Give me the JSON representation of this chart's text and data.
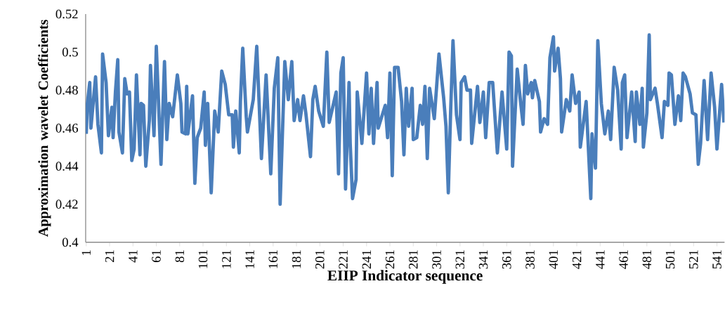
{
  "chart_data": {
    "type": "line",
    "xlabel": "EIIP Indicator sequence",
    "ylabel": "Approximation wavelet Coefficients",
    "xlim": [
      0.5,
      547.5
    ],
    "xticks": [
      1,
      21,
      41,
      61,
      81,
      101,
      121,
      141,
      161,
      181,
      201,
      221,
      241,
      261,
      281,
      301,
      321,
      341,
      361,
      381,
      401,
      421,
      441,
      461,
      481,
      501,
      521,
      541
    ],
    "ylim": [
      0.4,
      0.52
    ],
    "yticks": [
      0.4,
      0.42,
      0.44,
      0.46,
      0.48,
      0.5,
      0.52
    ],
    "x": [
      1,
      2,
      4,
      5,
      9,
      11,
      14,
      15,
      18,
      20,
      23,
      24,
      26,
      28,
      29,
      32,
      34,
      36,
      38,
      40,
      42,
      44,
      47,
      48,
      50,
      52,
      55,
      56,
      59,
      61,
      65,
      68,
      70,
      72,
      75,
      79,
      82,
      83,
      86,
      87,
      88,
      92,
      94,
      96,
      99,
      102,
      103,
      105,
      108,
      111,
      114,
      117,
      120,
      123,
      126,
      127,
      129,
      132,
      133,
      135,
      138,
      139,
      144,
      147,
      151,
      155,
      159,
      162,
      165,
      167,
      171,
      174,
      177,
      179,
      182,
      184,
      187,
      189,
      193,
      195,
      197,
      200,
      204,
      207,
      209,
      215,
      217,
      219,
      221,
      223,
      226,
      227,
      229,
      232,
      233,
      237,
      241,
      243,
      245,
      247,
      250,
      251,
      257,
      259,
      261,
      263,
      265,
      268,
      271,
      273,
      275,
      277,
      280,
      281,
      284,
      287,
      289,
      291,
      293,
      295,
      299,
      303,
      307,
      309,
      311,
      313,
      315,
      318,
      321,
      322,
      325,
      327,
      330,
      331,
      336,
      338,
      341,
      343,
      346,
      349,
      353,
      357,
      361,
      363,
      365,
      366,
      370,
      373,
      375,
      377,
      379,
      382,
      383,
      385,
      389,
      390,
      393,
      396,
      398,
      401,
      402,
      405,
      407,
      408,
      412,
      415,
      417,
      420,
      423,
      424,
      429,
      433,
      434,
      437,
      439,
      442,
      445,
      448,
      450,
      453,
      456,
      459,
      460,
      462,
      464,
      468,
      471,
      472,
      475,
      477,
      478,
      481,
      483,
      484,
      488,
      490,
      494,
      496,
      499,
      500,
      502,
      505,
      508,
      510,
      512,
      514,
      518,
      520,
      523,
      525,
      527,
      530,
      533,
      536,
      539,
      541,
      545,
      547
    ],
    "series": [
      {
        "color": "#4a7ebb",
        "values": [
          0.457,
          0.473,
          0.484,
          0.46,
          0.487,
          0.462,
          0.447,
          0.499,
          0.484,
          0.456,
          0.471,
          0.455,
          0.479,
          0.496,
          0.458,
          0.447,
          0.486,
          0.478,
          0.479,
          0.443,
          0.449,
          0.488,
          0.446,
          0.473,
          0.472,
          0.44,
          0.464,
          0.493,
          0.456,
          0.503,
          0.441,
          0.495,
          0.454,
          0.473,
          0.466,
          0.488,
          0.473,
          0.458,
          0.457,
          0.482,
          0.457,
          0.477,
          0.431,
          0.455,
          0.46,
          0.479,
          0.451,
          0.473,
          0.426,
          0.469,
          0.458,
          0.49,
          0.483,
          0.467,
          0.467,
          0.45,
          0.469,
          0.447,
          0.474,
          0.502,
          0.466,
          0.458,
          0.475,
          0.503,
          0.444,
          0.488,
          0.436,
          0.481,
          0.497,
          0.42,
          0.495,
          0.475,
          0.495,
          0.464,
          0.475,
          0.464,
          0.477,
          0.468,
          0.445,
          0.475,
          0.482,
          0.469,
          0.461,
          0.5,
          0.463,
          0.479,
          0.436,
          0.489,
          0.497,
          0.428,
          0.484,
          0.452,
          0.423,
          0.433,
          0.479,
          0.452,
          0.489,
          0.457,
          0.481,
          0.452,
          0.484,
          0.46,
          0.472,
          0.455,
          0.489,
          0.435,
          0.492,
          0.492,
          0.474,
          0.446,
          0.481,
          0.461,
          0.481,
          0.454,
          0.455,
          0.472,
          0.462,
          0.482,
          0.444,
          0.481,
          0.465,
          0.499,
          0.476,
          0.461,
          0.426,
          0.469,
          0.506,
          0.467,
          0.454,
          0.484,
          0.487,
          0.48,
          0.48,
          0.452,
          0.482,
          0.463,
          0.479,
          0.455,
          0.484,
          0.484,
          0.447,
          0.479,
          0.449,
          0.5,
          0.498,
          0.44,
          0.491,
          0.473,
          0.462,
          0.493,
          0.478,
          0.484,
          0.476,
          0.485,
          0.474,
          0.458,
          0.465,
          0.462,
          0.497,
          0.508,
          0.49,
          0.502,
          0.486,
          0.458,
          0.475,
          0.469,
          0.488,
          0.473,
          0.479,
          0.45,
          0.474,
          0.423,
          0.457,
          0.439,
          0.506,
          0.473,
          0.457,
          0.469,
          0.454,
          0.492,
          0.48,
          0.449,
          0.484,
          0.488,
          0.455,
          0.479,
          0.453,
          0.479,
          0.462,
          0.481,
          0.45,
          0.468,
          0.509,
          0.475,
          0.481,
          0.473,
          0.455,
          0.474,
          0.472,
          0.489,
          0.488,
          0.462,
          0.477,
          0.464,
          0.489,
          0.487,
          0.478,
          0.468,
          0.467,
          0.441,
          0.452,
          0.485,
          0.454,
          0.489,
          0.471,
          0.449,
          0.483,
          0.463
        ]
      }
    ]
  }
}
